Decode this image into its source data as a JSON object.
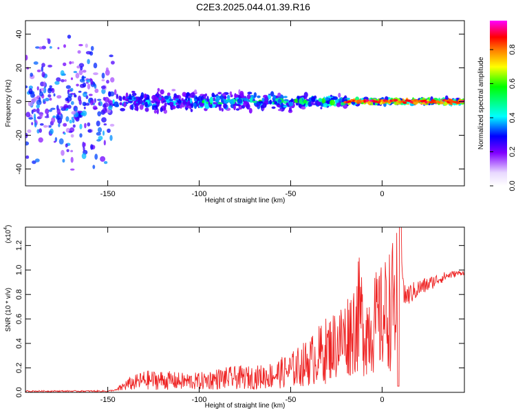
{
  "title": "C2E3.2025.044.01.39.R16",
  "colors": {
    "spec": "#6a00ff",
    "snr": "#ee2222",
    "frame": "#000000"
  },
  "chart_data": [
    {
      "type": "heatmap",
      "xlabel": "Height of straight line (km)",
      "ylabel": "Frequency (Hz)",
      "xlim": [
        -195,
        45
      ],
      "ylim": [
        -50,
        48
      ],
      "xticks": [
        -150,
        -100,
        -50,
        0
      ],
      "yticks": [
        -40,
        -20,
        0,
        20,
        40
      ],
      "colorbar": {
        "label": "Normalized spectral amplitude",
        "range": [
          0,
          0.97
        ],
        "ticks": [
          0.0,
          0.2,
          0.4,
          0.6,
          0.8
        ],
        "colors": [
          "#ffffff",
          "#8000ff",
          "#0000ff",
          "#00ffff",
          "#00ff00",
          "#ffff00",
          "#ff8000",
          "#ff0000",
          "#ff00ff"
        ]
      },
      "segments": [
        {
          "x": [
            -195,
            -147
          ],
          "freq_spread": 48,
          "amplitude": 0.25
        },
        {
          "x": [
            -147,
            -100
          ],
          "freq_spread": 8,
          "amplitude": 0.35
        },
        {
          "x": [
            -100,
            -50
          ],
          "freq_spread": 7,
          "amplitude": 0.45
        },
        {
          "x": [
            -50,
            -20
          ],
          "freq_spread": 5,
          "amplitude": 0.5
        },
        {
          "x": [
            -20,
            45
          ],
          "freq_spread": 2,
          "amplitude": 0.9
        }
      ]
    },
    {
      "type": "line",
      "xlabel": "Height of straight line (km)",
      "ylabel": "SNR (10 * v/v)",
      "yscale_label": "(x10",
      "yscale_exp": "4",
      "xlim": [
        -195,
        45
      ],
      "ylim": [
        0,
        1.35
      ],
      "xticks": [
        -150,
        -100,
        -50,
        0
      ],
      "yticks": [
        0.0,
        0.2,
        0.4,
        0.6,
        0.8,
        1.0,
        1.2
      ],
      "y_units": "x10^4",
      "series": [
        {
          "x": [
            -195,
            -150,
            -145,
            -140,
            -130,
            -120,
            -110,
            -100,
            -90,
            -80,
            -70,
            -60,
            -50,
            -40,
            -30,
            -20,
            -15,
            -12,
            -10,
            -5,
            0,
            5,
            8,
            9,
            10,
            12,
            15,
            20,
            25,
            30,
            35,
            40,
            45
          ],
          "values": [
            0.01,
            0.01,
            0.02,
            0.06,
            0.1,
            0.1,
            0.09,
            0.09,
            0.11,
            0.12,
            0.12,
            0.14,
            0.18,
            0.25,
            0.35,
            0.45,
            0.55,
            0.65,
            0.5,
            0.55,
            0.6,
            0.7,
            0.75,
            0.1,
            1.35,
            0.78,
            0.8,
            0.85,
            0.88,
            0.92,
            0.95,
            0.97,
            0.98
          ]
        }
      ]
    }
  ]
}
